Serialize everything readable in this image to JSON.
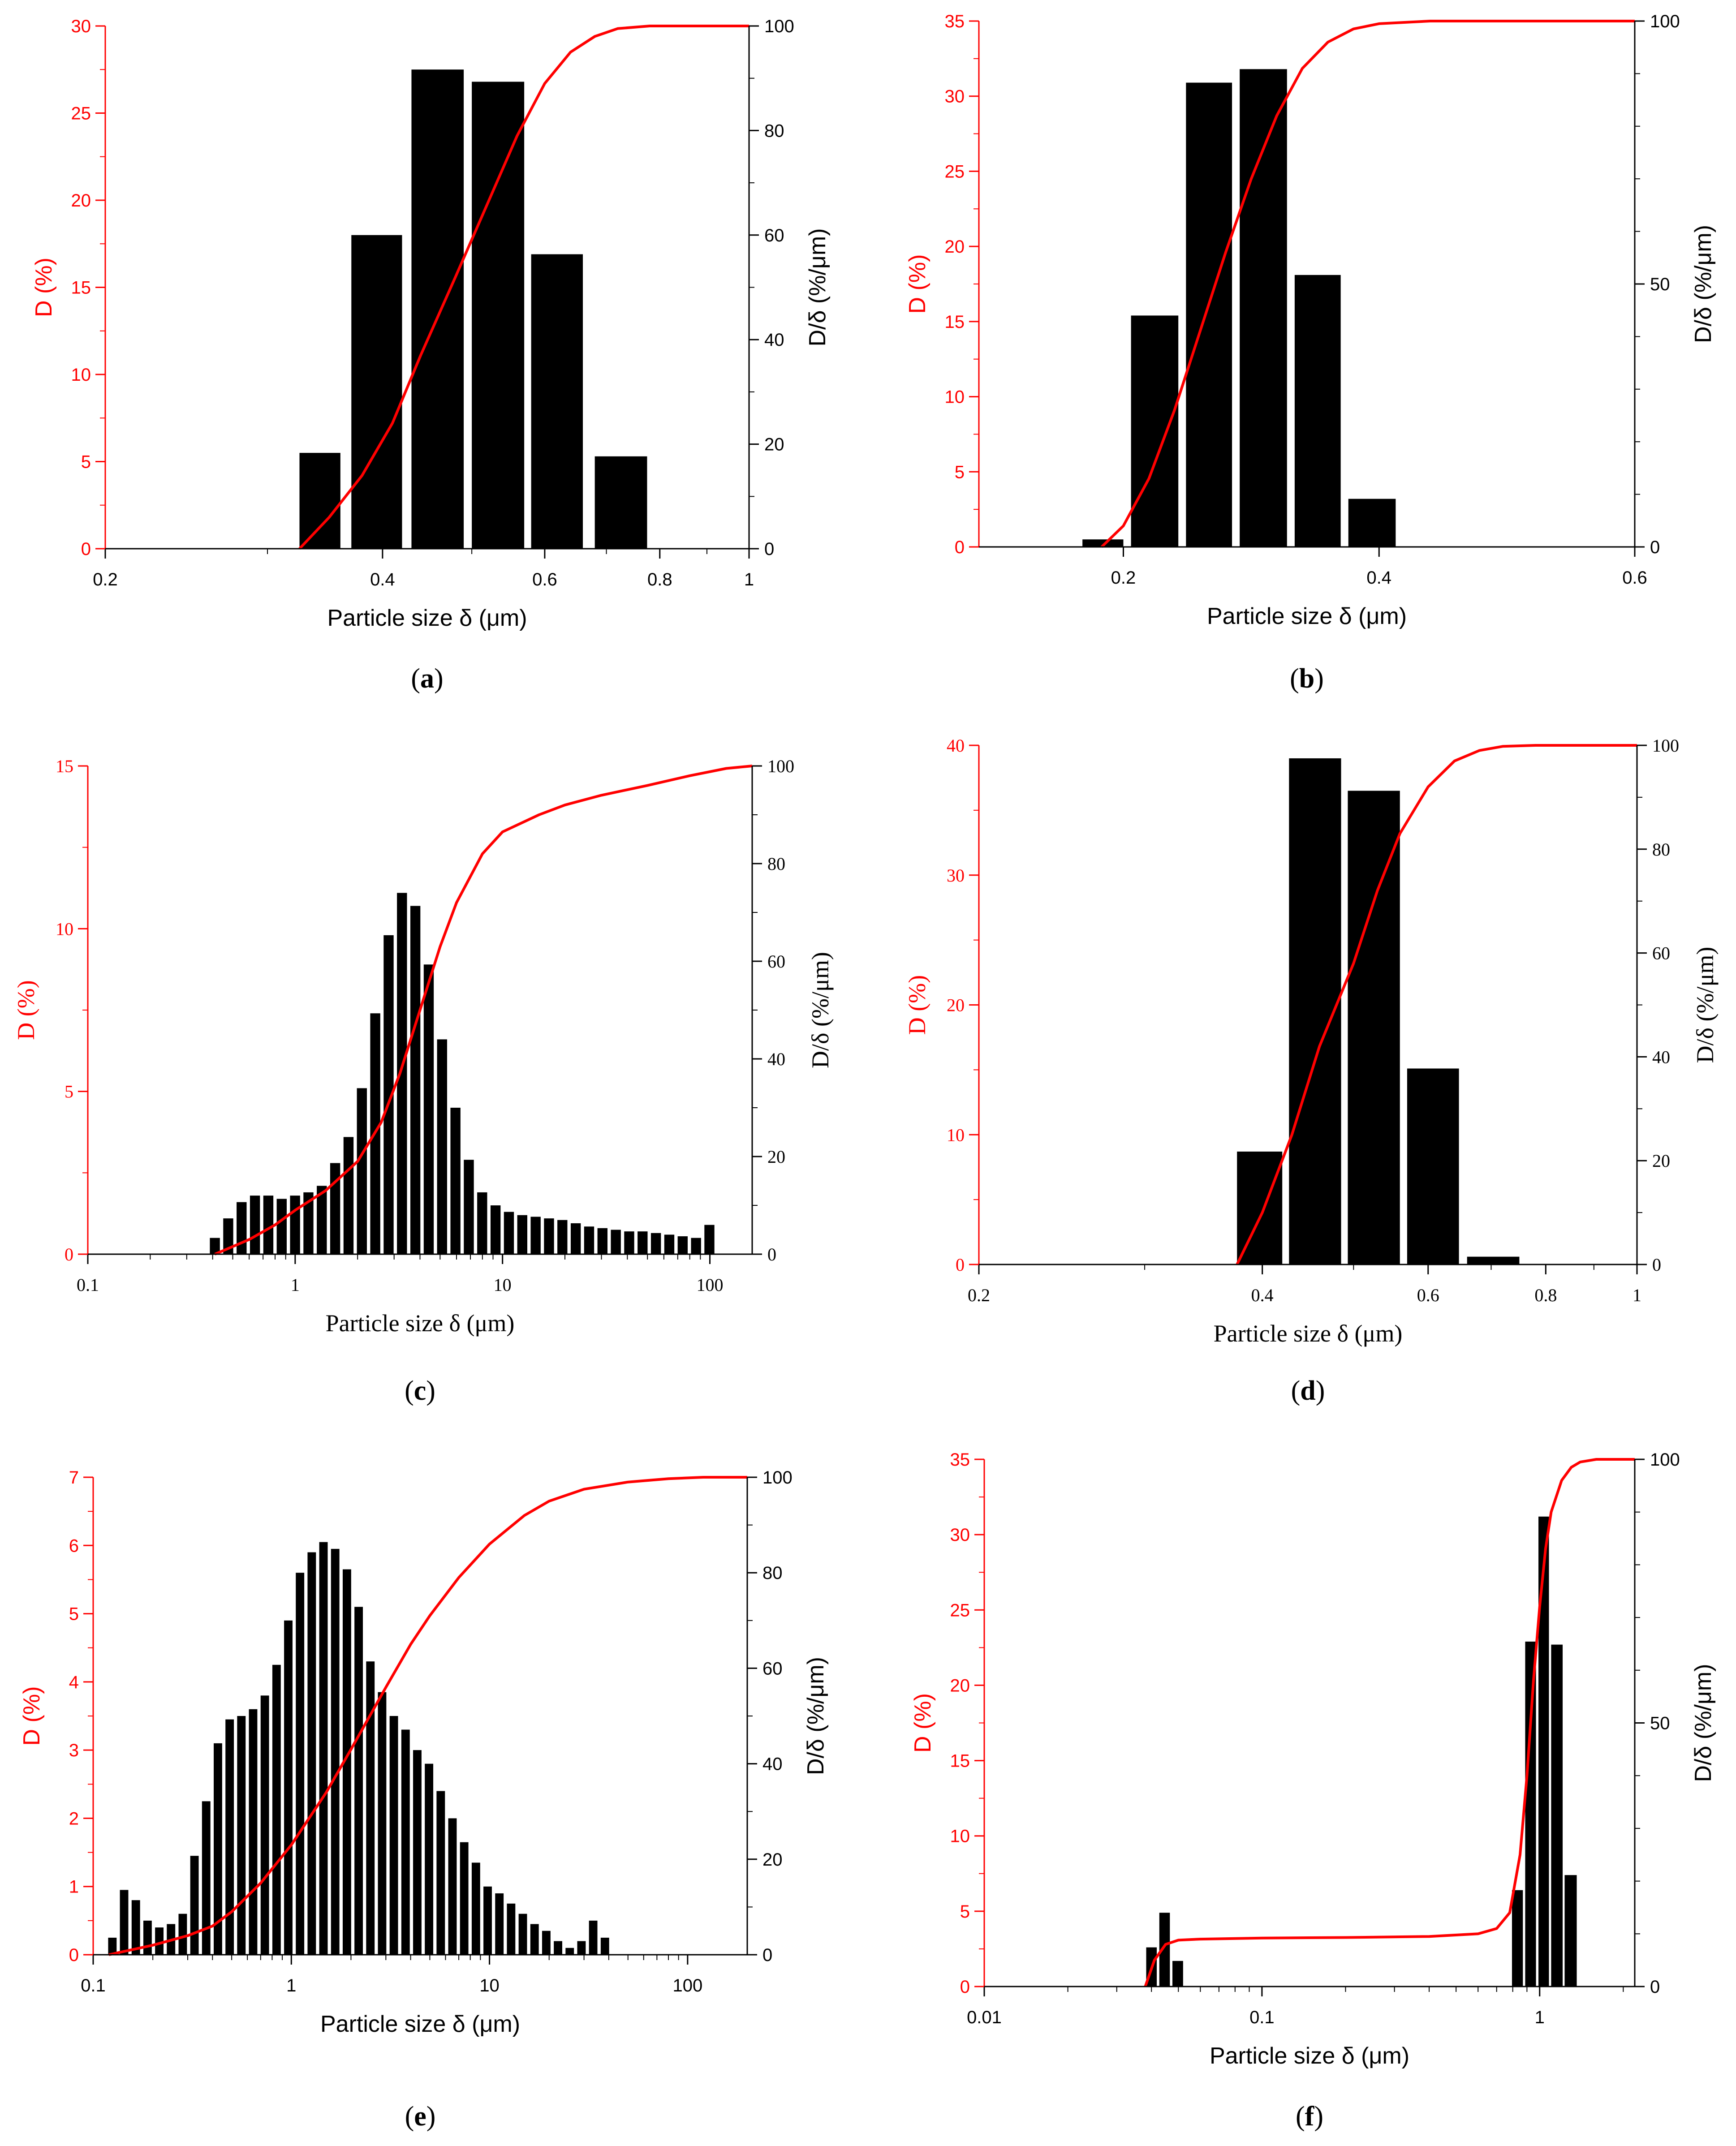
{
  "colors": {
    "primary_axis": "#ff0000",
    "cumulative": "#ff0000",
    "bars": "#000000",
    "secondary_axis": "#000000"
  },
  "chart_data": [
    {
      "panel": "a",
      "caption_letter": "a",
      "type": "bar",
      "xscale": "log",
      "xlim": [
        0.2,
        1.0
      ],
      "ylim": [
        0,
        30
      ],
      "y2lim": [
        0,
        100
      ],
      "xlabel": "Particle size δ (μm)",
      "ylabel": "D (%)",
      "y2label": "D/δ (%/μm)",
      "xticks": [
        0.2,
        0.4,
        0.6,
        0.8,
        1
      ],
      "xtick_labels": [
        "0.2",
        "0.4",
        "0.6",
        "0.8",
        "1"
      ],
      "yticks": [
        0,
        5,
        10,
        15,
        20,
        25,
        30
      ],
      "ytick_labels": [
        "0",
        "5",
        "10",
        "15",
        "20",
        "25",
        "30"
      ],
      "y2ticks": [
        0,
        20,
        40,
        60,
        80,
        100
      ],
      "y2tick_labels": [
        "0",
        "20",
        "40",
        "60",
        "80",
        "100"
      ],
      "bars": [
        {
          "x0": 0.325,
          "x1": 0.36,
          "value": 5.5
        },
        {
          "x0": 0.37,
          "x1": 0.42,
          "value": 18.0
        },
        {
          "x0": 0.43,
          "x1": 0.49,
          "value": 27.5
        },
        {
          "x0": 0.5,
          "x1": 0.57,
          "value": 26.8
        },
        {
          "x0": 0.58,
          "x1": 0.66,
          "value": 16.9
        },
        {
          "x0": 0.68,
          "x1": 0.775,
          "value": 5.3
        }
      ],
      "cumulative": {
        "x": [
          0.325,
          0.35,
          0.38,
          0.41,
          0.44,
          0.48,
          0.52,
          0.56,
          0.6,
          0.64,
          0.68,
          0.72,
          0.78,
          0.85,
          1.0
        ],
        "y": [
          0,
          6,
          14,
          24,
          37,
          52,
          66,
          79,
          89,
          95,
          98,
          99.5,
          100,
          100,
          100
        ]
      }
    },
    {
      "panel": "b",
      "caption_letter": "b",
      "type": "bar",
      "xscale": "linear",
      "xlim": [
        0.087,
        0.6
      ],
      "ylim": [
        0,
        35
      ],
      "y2lim": [
        0,
        100
      ],
      "xlabel": "Particle size δ (μm)",
      "ylabel": "D (%)",
      "y2label": "D/δ (%/μm)",
      "xticks": [
        0.2,
        0.4,
        0.6
      ],
      "xtick_labels": [
        "0.2",
        "0.4",
        "0.6"
      ],
      "yticks": [
        0,
        5,
        10,
        15,
        20,
        25,
        30,
        35
      ],
      "ytick_labels": [
        "0",
        "5",
        "10",
        "15",
        "20",
        "25",
        "30",
        "35"
      ],
      "y2ticks": [
        0,
        50,
        100
      ],
      "y2tick_labels": [
        "0",
        "50",
        "100"
      ],
      "bars": [
        {
          "x0": 0.168,
          "x1": 0.2,
          "value": 0.5
        },
        {
          "x0": 0.206,
          "x1": 0.243,
          "value": 15.4
        },
        {
          "x0": 0.249,
          "x1": 0.285,
          "value": 30.9
        },
        {
          "x0": 0.291,
          "x1": 0.328,
          "value": 31.8
        },
        {
          "x0": 0.334,
          "x1": 0.37,
          "value": 18.1
        },
        {
          "x0": 0.376,
          "x1": 0.413,
          "value": 3.2
        }
      ],
      "cumulative": {
        "x": [
          0.183,
          0.2,
          0.22,
          0.24,
          0.26,
          0.28,
          0.3,
          0.32,
          0.34,
          0.36,
          0.38,
          0.4,
          0.44,
          0.5,
          0.6
        ],
        "y": [
          0,
          4,
          13,
          26,
          41,
          56,
          70,
          82,
          91,
          96,
          98.5,
          99.5,
          100,
          100,
          100
        ]
      }
    },
    {
      "panel": "c",
      "caption_letter": "c",
      "type": "bar",
      "serif": true,
      "xscale": "log",
      "xlim": [
        0.1,
        160
      ],
      "ylim": [
        0,
        15
      ],
      "y2lim": [
        0,
        100
      ],
      "xlabel": "Particle size δ (μm)",
      "ylabel": "D (%)",
      "y2label": "D/δ (%/μm)",
      "xticks": [
        0.1,
        1,
        10,
        100
      ],
      "xtick_labels": [
        "0.1",
        "1",
        "10",
        "100"
      ],
      "yticks": [
        0,
        5,
        10,
        15
      ],
      "ytick_labels": [
        "0",
        "5",
        "10",
        "15"
      ],
      "y2ticks": [
        0,
        20,
        40,
        60,
        80,
        100
      ],
      "y2tick_labels": [
        "0",
        "20",
        "40",
        "60",
        "80",
        "100"
      ],
      "bars_log": {
        "first_center": 0.41,
        "ratio": 1.16,
        "width_fraction": 0.75,
        "values": [
          0.5,
          1.1,
          1.6,
          1.8,
          1.8,
          1.7,
          1.8,
          1.9,
          2.1,
          2.8,
          3.6,
          5.1,
          7.4,
          9.8,
          11.1,
          10.7,
          8.9,
          6.6,
          4.5,
          2.9,
          1.9,
          1.5,
          1.3,
          1.2,
          1.15,
          1.1,
          1.05,
          0.95,
          0.85,
          0.8,
          0.75,
          0.7,
          0.7,
          0.65,
          0.6,
          0.55,
          0.5,
          0.9
        ]
      },
      "cumulative": {
        "x": [
          0.41,
          0.6,
          0.8,
          1.0,
          1.4,
          2.0,
          2.6,
          3.2,
          4.0,
          5.0,
          6.0,
          8.0,
          10.0,
          15,
          20,
          30,
          50,
          80,
          120,
          160
        ],
        "y": [
          0,
          3,
          6,
          9,
          13,
          19,
          27,
          37,
          50,
          63,
          72,
          82,
          86.5,
          90,
          92,
          94,
          96,
          98,
          99.5,
          100
        ]
      }
    },
    {
      "panel": "d",
      "caption_letter": "d",
      "type": "bar",
      "serif": true,
      "xscale": "log",
      "xlim": [
        0.2,
        1.0
      ],
      "ylim": [
        0,
        40
      ],
      "y2lim": [
        0,
        100
      ],
      "xlabel": "Particle size δ (μm)",
      "ylabel": "D (%)",
      "y2label": "D/δ (%/μm)",
      "xticks": [
        0.2,
        0.4,
        0.6,
        0.8,
        1
      ],
      "xtick_labels": [
        "0.2",
        "0.4",
        "0.6",
        "0.8",
        "1"
      ],
      "yticks": [
        0,
        10,
        20,
        30,
        40
      ],
      "ytick_labels": [
        "0",
        "10",
        "20",
        "30",
        "40"
      ],
      "y2ticks": [
        0,
        20,
        40,
        60,
        80,
        100
      ],
      "y2tick_labels": [
        "0",
        "20",
        "40",
        "60",
        "80",
        "100"
      ],
      "bars": [
        {
          "x0": 0.376,
          "x1": 0.42,
          "value": 8.7
        },
        {
          "x0": 0.427,
          "x1": 0.485,
          "value": 39.0
        },
        {
          "x0": 0.493,
          "x1": 0.56,
          "value": 36.5
        },
        {
          "x0": 0.57,
          "x1": 0.647,
          "value": 15.1
        },
        {
          "x0": 0.66,
          "x1": 0.75,
          "value": 0.6
        }
      ],
      "cumulative": {
        "x": [
          0.376,
          0.4,
          0.43,
          0.46,
          0.5,
          0.53,
          0.56,
          0.6,
          0.64,
          0.68,
          0.72,
          0.78,
          1.0
        ],
        "y": [
          0,
          10,
          25,
          42,
          58,
          72,
          83,
          92,
          97,
          99,
          99.8,
          100,
          100
        ]
      }
    },
    {
      "panel": "e",
      "caption_letter": "e",
      "type": "bar",
      "xscale": "log",
      "xlim": [
        0.1,
        200
      ],
      "ylim": [
        0,
        7
      ],
      "y2lim": [
        0,
        100
      ],
      "xlabel": "Particle size δ (μm)",
      "ylabel": "D (%)",
      "y2label": "D/δ (%/μm)",
      "xticks": [
        0.1,
        1,
        10,
        100
      ],
      "xtick_labels": [
        "0.1",
        "1",
        "10",
        "100"
      ],
      "yticks": [
        0,
        1,
        2,
        3,
        4,
        5,
        6,
        7
      ],
      "ytick_labels": [
        "0",
        "1",
        "2",
        "3",
        "4",
        "5",
        "6",
        "7"
      ],
      "y2ticks": [
        0,
        20,
        40,
        60,
        80,
        100
      ],
      "y2tick_labels": [
        "0",
        "20",
        "40",
        "60",
        "80",
        "100"
      ],
      "bars_log": {
        "first_center": 0.125,
        "ratio": 1.146,
        "width_fraction": 0.72,
        "values": [
          0.25,
          0.95,
          0.8,
          0.5,
          0.4,
          0.45,
          0.6,
          1.45,
          2.25,
          3.1,
          3.45,
          3.5,
          3.6,
          3.8,
          4.25,
          4.9,
          5.6,
          5.9,
          6.05,
          5.95,
          5.65,
          5.1,
          4.3,
          3.85,
          3.5,
          3.3,
          3.0,
          2.8,
          2.4,
          2.0,
          1.65,
          1.35,
          1.0,
          0.9,
          0.75,
          0.6,
          0.45,
          0.35,
          0.2,
          0.1,
          0.2,
          0.5,
          0.25
        ]
      },
      "cumulative": {
        "x": [
          0.12,
          0.2,
          0.3,
          0.4,
          0.5,
          0.7,
          1.0,
          1.5,
          2.0,
          3.0,
          4.0,
          5.0,
          7.0,
          10,
          15,
          20,
          30,
          50,
          80,
          120,
          200
        ],
        "y": [
          0,
          2,
          4,
          6,
          9,
          15,
          23,
          34,
          43,
          56,
          65,
          71,
          79,
          86,
          92,
          95,
          97.5,
          99,
          99.7,
          100,
          100
        ]
      }
    },
    {
      "panel": "f",
      "caption_letter": "f",
      "type": "bar",
      "xscale": "log",
      "xlim": [
        0.01,
        2.2
      ],
      "ylim": [
        0,
        35
      ],
      "y2lim": [
        0,
        100
      ],
      "xlabel": "Particle size δ (μm)",
      "ylabel": "D (%)",
      "y2label": "D/δ (%/μm)",
      "xticks": [
        0.01,
        0.1,
        1
      ],
      "xtick_labels": [
        "0.01",
        "0.1",
        "1"
      ],
      "yticks": [
        0,
        5,
        10,
        15,
        20,
        25,
        30,
        35
      ],
      "ytick_labels": [
        "0",
        "5",
        "10",
        "15",
        "20",
        "25",
        "30",
        "35"
      ],
      "y2ticks": [
        0,
        50,
        100
      ],
      "y2tick_labels": [
        "0",
        "50",
        "100"
      ],
      "bars": [
        {
          "x0": 0.0383,
          "x1": 0.0418,
          "value": 2.6
        },
        {
          "x0": 0.0427,
          "x1": 0.0466,
          "value": 4.9
        },
        {
          "x0": 0.0476,
          "x1": 0.052,
          "value": 1.7
        },
        {
          "x0": 0.795,
          "x1": 0.87,
          "value": 6.4
        },
        {
          "x0": 0.887,
          "x1": 0.97,
          "value": 22.9
        },
        {
          "x0": 0.99,
          "x1": 1.08,
          "value": 31.2
        },
        {
          "x0": 1.1,
          "x1": 1.21,
          "value": 22.7
        },
        {
          "x0": 1.23,
          "x1": 1.36,
          "value": 7.4
        }
      ],
      "cumulative": {
        "x": [
          0.038,
          0.041,
          0.045,
          0.05,
          0.06,
          0.1,
          0.2,
          0.4,
          0.6,
          0.7,
          0.78,
          0.85,
          0.9,
          0.95,
          1.0,
          1.05,
          1.1,
          1.2,
          1.3,
          1.4,
          1.6,
          2.2
        ],
        "y": [
          0,
          5,
          8,
          8.8,
          9,
          9.2,
          9.3,
          9.5,
          10,
          11,
          14,
          25,
          40,
          58,
          72,
          83,
          90,
          96,
          98.5,
          99.5,
          100,
          100
        ]
      }
    }
  ]
}
